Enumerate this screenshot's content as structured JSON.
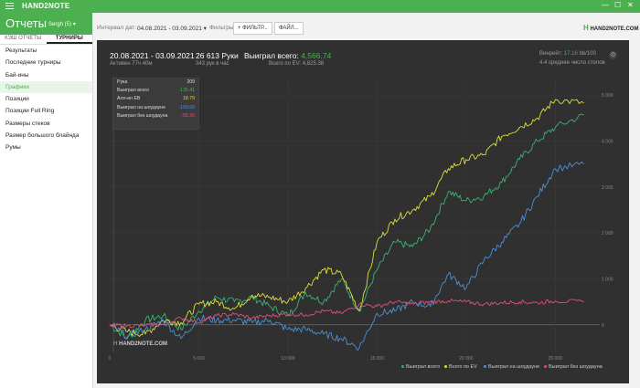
{
  "app": {
    "name": "HAND2NOTE",
    "window_controls": [
      "—",
      "☐",
      "✕"
    ]
  },
  "header": {
    "title": "Отчеты",
    "user": "Sergh (5)"
  },
  "sidebar": {
    "tabs": [
      "КЭШ ОТЧЕТЫ",
      "ТУРНИРЫ"
    ],
    "items": [
      {
        "label": "Результаты"
      },
      {
        "label": "Последние турниры"
      },
      {
        "label": "Бай-ины"
      },
      {
        "label": "Графики",
        "active": true
      },
      {
        "label": "Позиции"
      },
      {
        "label": "Позиции Full Ring"
      },
      {
        "label": "Размеры стеков"
      },
      {
        "label": "Размер большого блайнда"
      },
      {
        "label": "Румы"
      }
    ]
  },
  "toolbar": {
    "interval_label": "Интервал дат:",
    "interval_value": "04.08.2021 - 03.09.2021",
    "filters_label": "Фильтры:",
    "filter_button": "+ ФИЛЬТР...",
    "file_button": "ФАЙЛ...",
    "logo": "HAND2NOTE.COM"
  },
  "stats": {
    "range": "20.08.2021 - 03.09.2021",
    "active": "Активен 77ч 40м",
    "hands": "26 613 Руки",
    "hands_per_hour": "343 рук в час",
    "won_label": "Выиграл всего:",
    "won_value": "4,566.74",
    "ev_total": "Всего по EV: 4,825.38",
    "winrate_label": "Винрейт:",
    "winrate_value": "17.16",
    "winrate_unit": "bb/100",
    "avg_tables": "4.4 среднее число столов"
  },
  "tooltip": {
    "rows": [
      {
        "label": "Рука",
        "value": "209",
        "color": "#dddddd"
      },
      {
        "label": "Выиграл всего",
        "value": "-135.41",
        "color": "#4caf50"
      },
      {
        "label": "Алл-ин EB",
        "value": "18.79",
        "color": "#d4d43a"
      },
      {
        "label": "Выиграл на шоудауне",
        "value": "-193.66",
        "color": "#4a90d9"
      },
      {
        "label": "Выиграл без шоудауна",
        "value": "-58.26",
        "color": "#e0507a"
      }
    ]
  },
  "watermark": "HAND2NOTE.COM",
  "colors": {
    "accent": "#4caf50",
    "panel": "#303030"
  },
  "chart_data": {
    "type": "line",
    "x": [
      0,
      1000,
      2000,
      3000,
      4000,
      5000,
      6000,
      7000,
      8000,
      9000,
      10000,
      11000,
      12000,
      13000,
      14000,
      15000,
      16000,
      17000,
      18000,
      19000,
      20000,
      21000,
      22000,
      23000,
      24000,
      25000,
      26613
    ],
    "x_ticks": [
      "0",
      "5 000",
      "10 000",
      "15 000",
      "20 000",
      "25 000"
    ],
    "y_ticks": [
      "0",
      "1 000",
      "2 000",
      "3 000",
      "4 000",
      "5 000"
    ],
    "xlim": [
      0,
      27500
    ],
    "ylim": [
      -600,
      5400
    ],
    "grid": true,
    "legend_position": "bottom-right",
    "series": [
      {
        "name": "Выиграл всего",
        "color": "#3bb273",
        "values": [
          0,
          -300,
          100,
          200,
          -100,
          300,
          600,
          500,
          600,
          400,
          200,
          700,
          500,
          1000,
          300,
          1200,
          1800,
          1700,
          2100,
          2900,
          2700,
          2800,
          3100,
          3600,
          4000,
          4300,
          4566
        ]
      },
      {
        "name": "Всего по EV",
        "color": "#dede3a",
        "values": [
          0,
          -150,
          -200,
          100,
          50,
          450,
          500,
          350,
          650,
          600,
          500,
          800,
          1200,
          1100,
          300,
          1800,
          2300,
          2500,
          2800,
          3400,
          3600,
          3700,
          4100,
          4300,
          4500,
          4900,
          4825
        ]
      },
      {
        "name": "Выиграл на шоудауне",
        "color": "#4a90d9",
        "values": [
          0,
          -250,
          -100,
          100,
          -300,
          150,
          100,
          100,
          50,
          100,
          -100,
          -100,
          -200,
          -300,
          -500,
          250,
          300,
          500,
          400,
          1100,
          800,
          1400,
          1800,
          2200,
          2800,
          3400,
          3500
        ]
      },
      {
        "name": "Выиграл без шоудауна",
        "color": "#e0507a",
        "values": [
          0,
          -20,
          -10,
          10,
          150,
          50,
          200,
          230,
          150,
          200,
          230,
          220,
          300,
          250,
          450,
          400,
          500,
          450,
          500,
          520,
          500,
          450,
          480,
          500,
          480,
          520,
          500
        ]
      }
    ]
  }
}
